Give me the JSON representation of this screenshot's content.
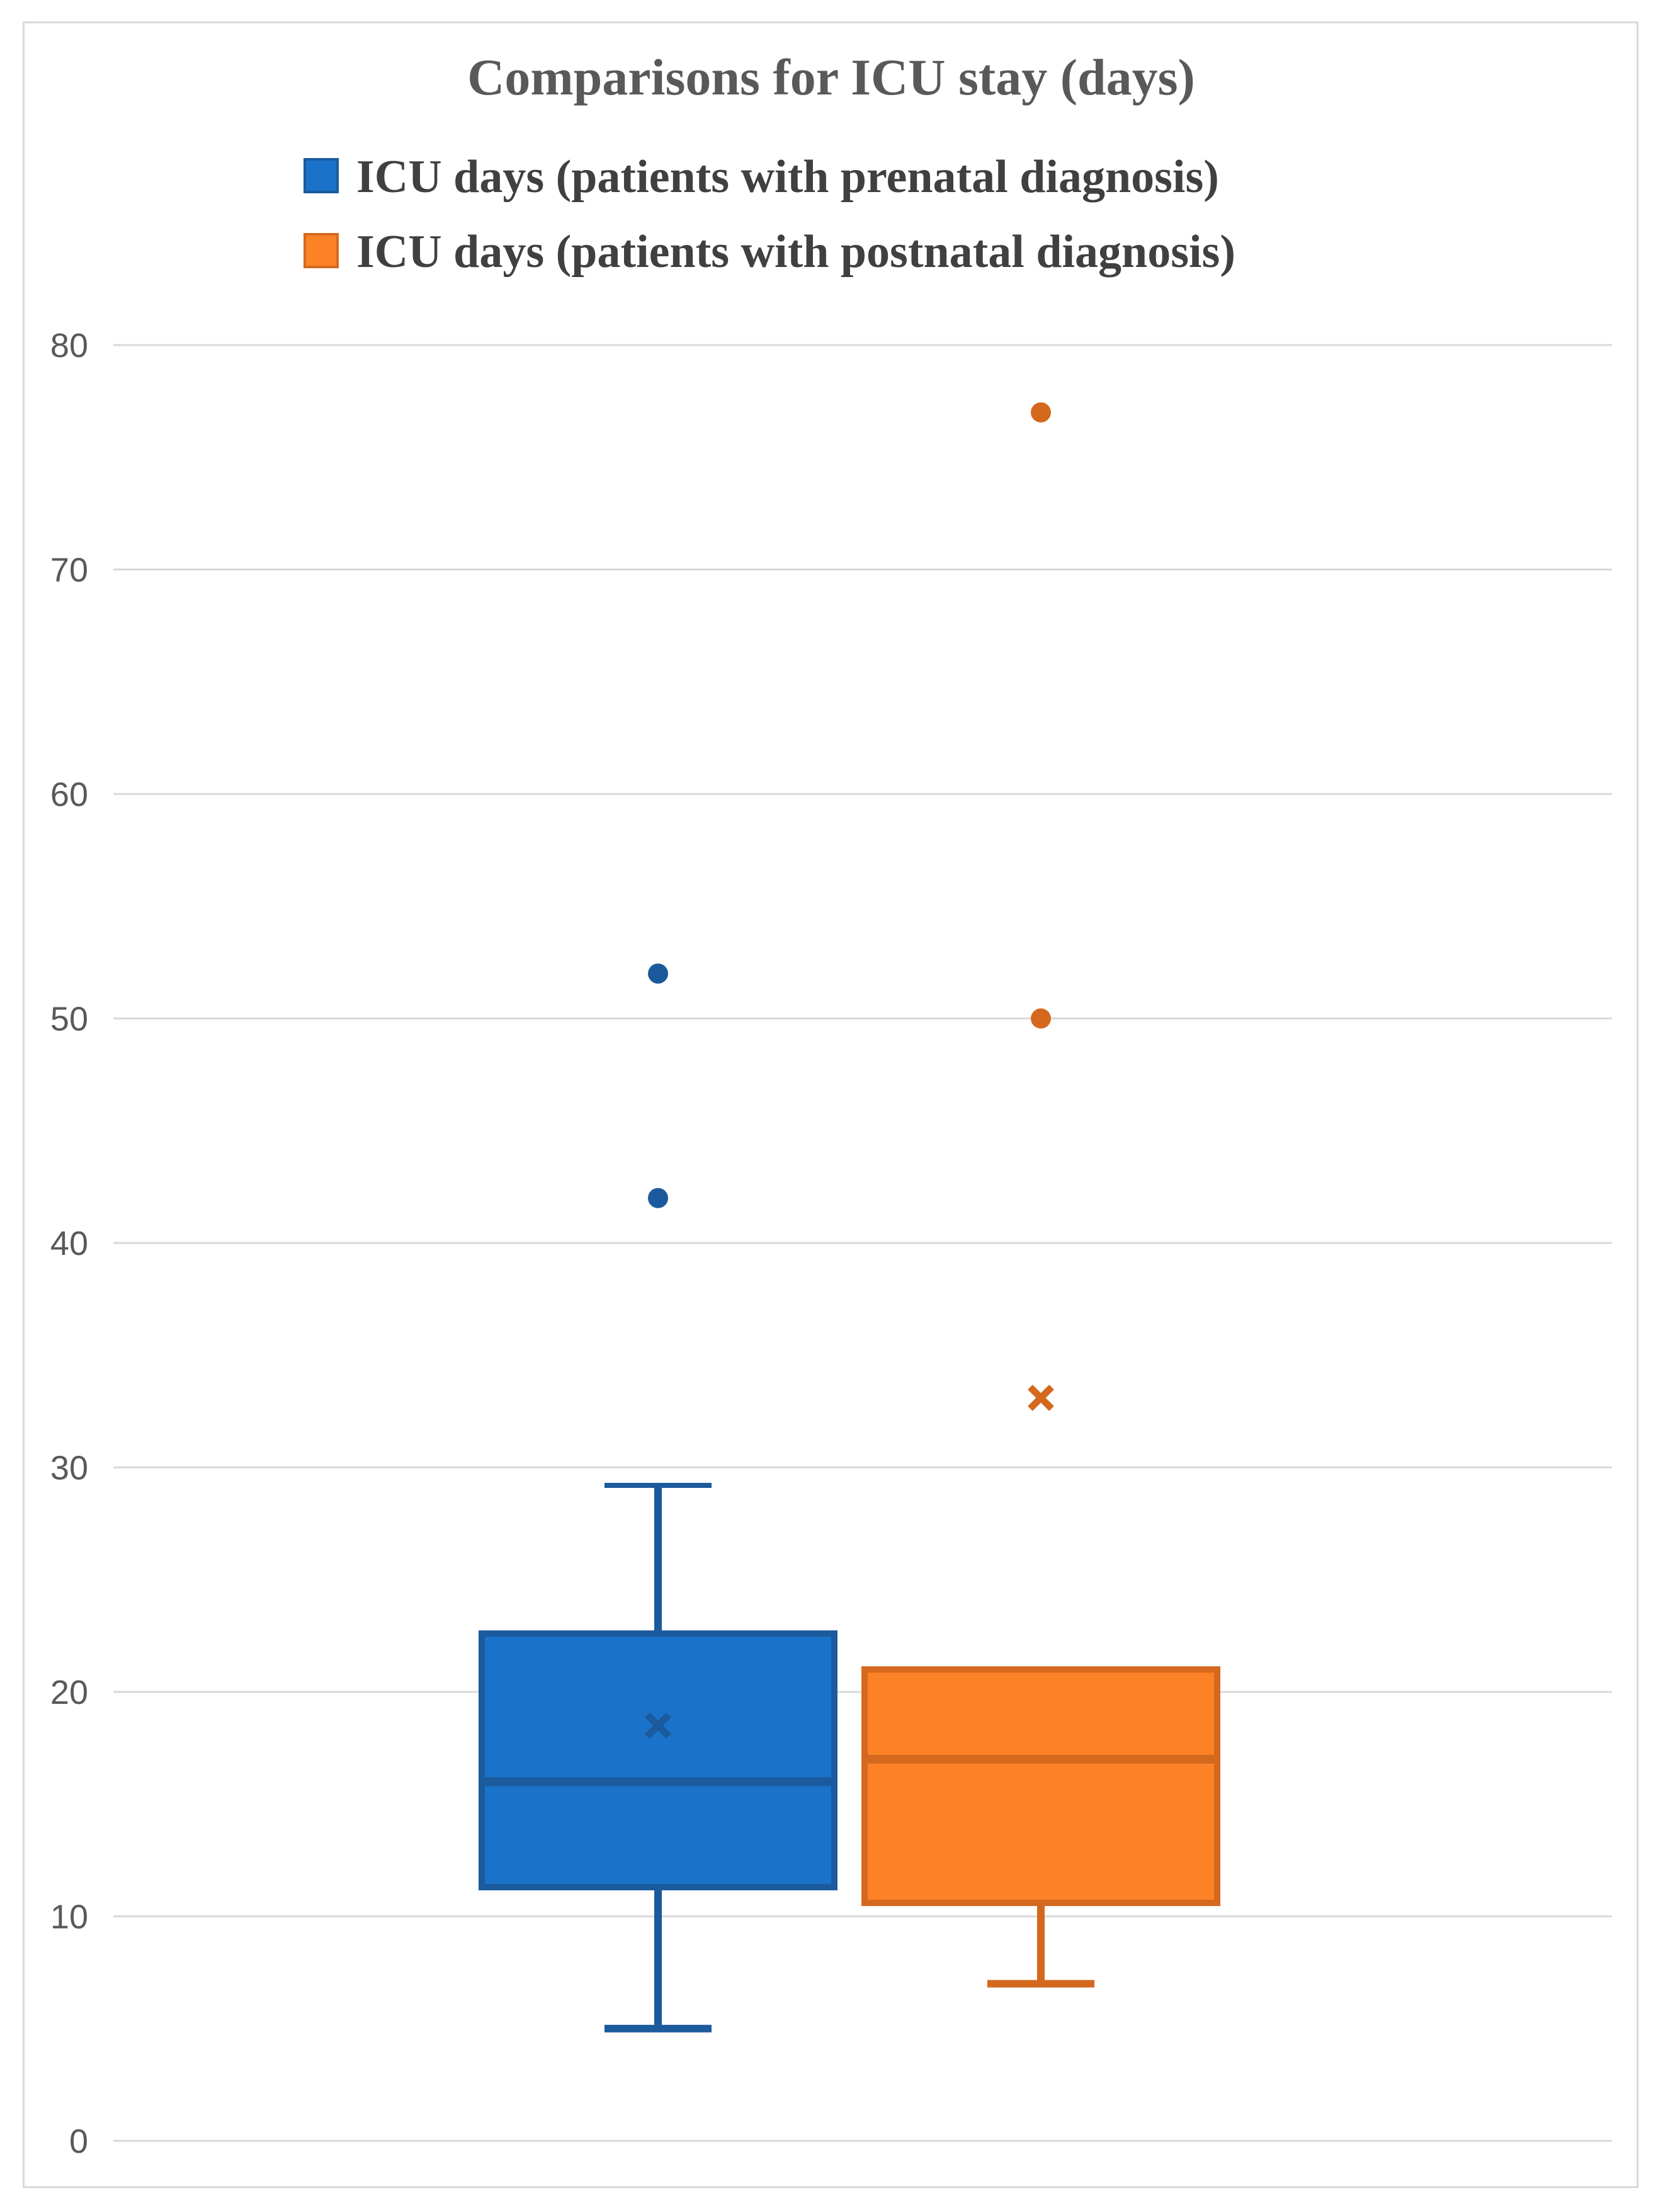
{
  "chart_data": {
    "type": "box",
    "title": "Comparisons  for ICU stay (days)",
    "xlabel": "",
    "ylabel": "",
    "ylim": [
      0,
      80
    ],
    "yticks": [
      0,
      10,
      20,
      30,
      40,
      50,
      60,
      70,
      80
    ],
    "grid": true,
    "legend_position": "top",
    "series": [
      {
        "name": "ICU days (patients with prenatal diagnosis)",
        "color": "#1a72c9",
        "edge_color": "#1b5a9c",
        "min": 5,
        "q1": 11.3,
        "median": 16,
        "q3": 22.6,
        "max": 29.2,
        "mean": 18.5,
        "outliers": [
          42,
          52
        ]
      },
      {
        "name": "ICU days (patients with postnatal diagnosis)",
        "color": "#fd8227",
        "edge_color": "#d4691e",
        "min": 7,
        "q1": 10.6,
        "median": 17,
        "q3": 21,
        "max": 21,
        "mean": 33.1,
        "outliers": [
          50,
          77
        ]
      }
    ]
  }
}
